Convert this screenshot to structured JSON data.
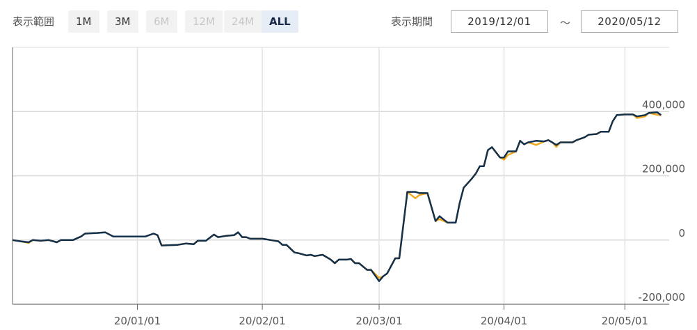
{
  "controls": {
    "range_label": "表示範囲",
    "range_buttons": [
      {
        "label": "1M",
        "state": "enabled"
      },
      {
        "label": "3M",
        "state": "enabled"
      },
      {
        "label": "6M",
        "state": "disabled"
      },
      {
        "label": "12M",
        "state": "disabled"
      },
      {
        "label": "24M",
        "state": "disabled"
      },
      {
        "label": "ALL",
        "state": "active"
      }
    ],
    "period_label": "表示期間",
    "start_date": "2019/12/01",
    "separator": "～",
    "end_date": "2020/05/12"
  },
  "chart_data": {
    "type": "line",
    "x": [
      "19/12/01",
      "19/12/03",
      "19/12/05",
      "19/12/06",
      "19/12/08",
      "19/12/10",
      "19/12/12",
      "19/12/13",
      "19/12/16",
      "19/12/18",
      "19/12/19",
      "19/12/22",
      "19/12/24",
      "19/12/26",
      "20/01/03",
      "20/01/05",
      "20/01/06",
      "20/01/07",
      "20/01/11",
      "20/01/13",
      "20/01/15",
      "20/01/16",
      "20/01/18",
      "20/01/20",
      "20/01/21",
      "20/01/23",
      "20/01/25",
      "20/01/26",
      "20/01/27",
      "20/01/28",
      "20/01/29",
      "20/02/01",
      "20/02/04",
      "20/02/05",
      "20/02/06",
      "20/02/07",
      "20/02/09",
      "20/02/10",
      "20/02/12",
      "20/02/13",
      "20/02/14",
      "20/02/16",
      "20/02/18",
      "20/02/19",
      "20/02/20",
      "20/02/22",
      "20/02/23",
      "20/02/24",
      "20/02/25",
      "20/02/27",
      "20/02/28",
      "20/03/01",
      "20/03/02",
      "20/03/03",
      "20/03/05",
      "20/03/06",
      "20/03/08",
      "20/03/10",
      "20/03/11",
      "20/03/13",
      "20/03/15",
      "20/03/16",
      "20/03/18",
      "20/03/20",
      "20/03/21",
      "20/03/22",
      "20/03/24",
      "20/03/25",
      "20/03/26",
      "20/03/27",
      "20/03/28",
      "20/03/29",
      "20/03/31",
      "20/04/01",
      "20/04/02",
      "20/04/04",
      "20/04/05",
      "20/04/06",
      "20/04/07",
      "20/04/09",
      "20/04/11",
      "20/04/12",
      "20/04/13",
      "20/04/14",
      "20/04/15",
      "20/04/18",
      "20/04/19",
      "20/04/21",
      "20/04/22",
      "20/04/24",
      "20/04/25",
      "20/04/27",
      "20/04/28",
      "20/04/29",
      "20/05/01",
      "20/05/03",
      "20/05/04",
      "20/05/06",
      "20/05/07",
      "20/05/09",
      "20/05/10"
    ],
    "series": [
      {
        "color": "#f0a820",
        "values": [
          0,
          -4000,
          -9000,
          0,
          -2000,
          0,
          -7000,
          0,
          0,
          11000,
          20000,
          22000,
          24000,
          11000,
          11000,
          20000,
          15000,
          -17000,
          -15000,
          -11000,
          -13000,
          -2000,
          -2000,
          17000,
          9000,
          13000,
          15000,
          24000,
          9000,
          9000,
          4000,
          4000,
          -2000,
          -4000,
          -15000,
          -15000,
          -39000,
          -41000,
          -48000,
          -46000,
          -50000,
          -46000,
          -61000,
          -72000,
          -61000,
          -61000,
          -59000,
          -72000,
          -72000,
          -93000,
          -93000,
          -118000,
          -113000,
          -104000,
          -57000,
          -57000,
          150000,
          130000,
          140000,
          146000,
          59000,
          65000,
          54000,
          54000,
          115000,
          163000,
          191000,
          207000,
          230000,
          230000,
          280000,
          289000,
          257000,
          250000,
          265000,
          276000,
          309000,
          298000,
          304000,
          296000,
          307000,
          311000,
          304000,
          290000,
          304000,
          304000,
          311000,
          320000,
          328000,
          330000,
          337000,
          337000,
          370000,
          389000,
          391000,
          391000,
          380000,
          385000,
          396000,
          390000,
          389000
        ]
      },
      {
        "color": "#13304d",
        "values": [
          0,
          -4000,
          -7000,
          0,
          -2000,
          0,
          -7000,
          0,
          0,
          11000,
          20000,
          22000,
          24000,
          11000,
          11000,
          20000,
          15000,
          -17000,
          -15000,
          -11000,
          -13000,
          -2000,
          -2000,
          17000,
          9000,
          13000,
          15000,
          24000,
          9000,
          9000,
          4000,
          4000,
          -2000,
          -4000,
          -15000,
          -15000,
          -39000,
          -41000,
          -48000,
          -46000,
          -50000,
          -46000,
          -61000,
          -72000,
          -61000,
          -61000,
          -59000,
          -72000,
          -72000,
          -93000,
          -93000,
          -128000,
          -113000,
          -104000,
          -57000,
          -57000,
          150000,
          150000,
          146000,
          146000,
          59000,
          74000,
          54000,
          54000,
          115000,
          163000,
          191000,
          207000,
          230000,
          230000,
          280000,
          289000,
          257000,
          257000,
          276000,
          276000,
          309000,
          298000,
          304000,
          309000,
          307000,
          311000,
          304000,
          296000,
          304000,
          304000,
          311000,
          320000,
          328000,
          330000,
          337000,
          337000,
          370000,
          389000,
          391000,
          391000,
          385000,
          389000,
          396000,
          398000,
          389000
        ]
      }
    ],
    "xlim": [
      "19/12/01",
      "20/05/12"
    ],
    "xticks": [
      "20/01/01",
      "20/02/01",
      "20/03/01",
      "20/04/01",
      "20/05/01"
    ],
    "ylim": [
      -200000,
      600000
    ],
    "yticks": [
      {
        "value": -200000,
        "label": "-200,000"
      },
      0,
      {
        "value": 200000,
        "label": "200,000"
      },
      {
        "value": 400000,
        "label": "400,000"
      }
    ],
    "grid": true
  }
}
